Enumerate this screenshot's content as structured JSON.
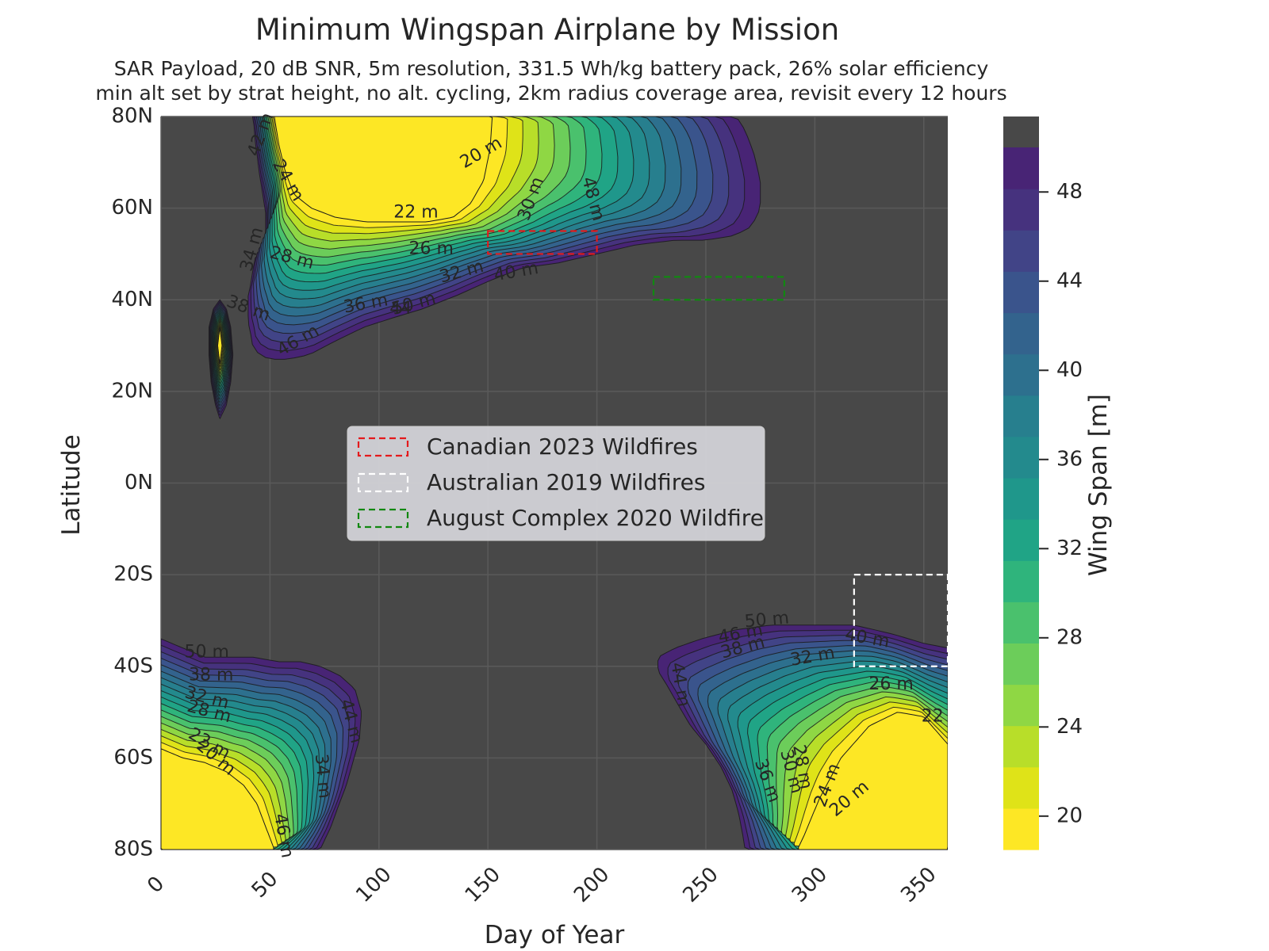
{
  "chart_data": {
    "type": "contour",
    "title": "Minimum Wingspan Airplane by Mission",
    "subtitle_lines": [
      "SAR Payload, 20 dB SNR, 5m resolution, 331.5 Wh/kg battery pack, 26% solar efficiency",
      "min alt set by strat height, no alt. cycling, 2km radius coverage area, revisit every 12 hours"
    ],
    "xlabel": "Day of Year",
    "ylabel": "Latitude",
    "xlim": [
      0,
      361
    ],
    "ylim": [
      -80,
      80
    ],
    "x_ticks": [
      0,
      50,
      100,
      150,
      200,
      250,
      300,
      350
    ],
    "x_tick_labels": [
      "0",
      "50",
      "100",
      "150",
      "200",
      "250",
      "300",
      "350"
    ],
    "y_ticks": [
      80,
      60,
      40,
      20,
      0,
      -20,
      -40,
      -60,
      -80
    ],
    "y_tick_labels": [
      "80N",
      "60N",
      "40N",
      "20N",
      "0N",
      "20S",
      "40S",
      "60S",
      "80S"
    ],
    "infeasible_color": "#484848",
    "colorbar": {
      "label": "Wing Span [m]",
      "min": 18.5,
      "max": 50,
      "ticks": [
        20,
        24,
        28,
        32,
        36,
        40,
        44,
        48
      ],
      "colors": [
        "#fde725",
        "#dfe318",
        "#b8de29",
        "#8fd744",
        "#6ccd5a",
        "#4ac16d",
        "#2fb47c",
        "#20a486",
        "#1f978b",
        "#238a8d",
        "#277f8e",
        "#2d708e",
        "#33638d",
        "#3a548c",
        "#414487",
        "#46327e",
        "#482475"
      ],
      "top_color": "#484848"
    },
    "contour_levels_m": [
      20,
      22,
      24,
      26,
      28,
      30,
      32,
      34,
      36,
      38,
      40,
      42,
      44,
      46,
      48,
      50
    ],
    "regions": [
      {
        "name": "north-feasible-region",
        "outline": [
          [
            42,
            80
          ],
          [
            43,
            77
          ],
          [
            43,
            75
          ],
          [
            44,
            72
          ],
          [
            45,
            68
          ],
          [
            46,
            65
          ],
          [
            47,
            62
          ],
          [
            48,
            59
          ],
          [
            48,
            56
          ],
          [
            48,
            53
          ],
          [
            47,
            51
          ],
          [
            45,
            50
          ],
          [
            43,
            49
          ],
          [
            42,
            46
          ],
          [
            41,
            43
          ],
          [
            40,
            41
          ],
          [
            40,
            39
          ],
          [
            40,
            37
          ],
          [
            40,
            35
          ],
          [
            41,
            33
          ],
          [
            42,
            30
          ],
          [
            45,
            28
          ],
          [
            50,
            27
          ],
          [
            58,
            27
          ],
          [
            68,
            28
          ],
          [
            80,
            31
          ],
          [
            93,
            34
          ],
          [
            106,
            36
          ],
          [
            120,
            38
          ],
          [
            136,
            41
          ],
          [
            150,
            44
          ],
          [
            166,
            47
          ],
          [
            182,
            48
          ],
          [
            200,
            50
          ],
          [
            218,
            52
          ],
          [
            236,
            53
          ],
          [
            250,
            53
          ],
          [
            263,
            54
          ],
          [
            271,
            56
          ],
          [
            275,
            60
          ],
          [
            275,
            66
          ],
          [
            272,
            72
          ],
          [
            268,
            77
          ],
          [
            264,
            80
          ]
        ],
        "core": [
          [
            52,
            80
          ],
          [
            54,
            74
          ],
          [
            57,
            68
          ],
          [
            61,
            63
          ],
          [
            69,
            60
          ],
          [
            80,
            58
          ],
          [
            94,
            57
          ],
          [
            108,
            57
          ],
          [
            122,
            57
          ],
          [
            134,
            58
          ],
          [
            142,
            61
          ],
          [
            148,
            66
          ],
          [
            151,
            73
          ],
          [
            152,
            80
          ]
        ],
        "label_points": [
          {
            "text": "20 m",
            "x": 147,
            "y": 72,
            "rotate": -30
          },
          {
            "text": "22 m",
            "x": 117,
            "y": 59,
            "rotate": 0
          },
          {
            "text": "24 m",
            "x": 58,
            "y": 66,
            "rotate": 60
          },
          {
            "text": "26 m",
            "x": 124,
            "y": 51,
            "rotate": 0
          },
          {
            "text": "28 m",
            "x": 60,
            "y": 49,
            "rotate": 15
          },
          {
            "text": "30 m",
            "x": 170,
            "y": 62,
            "rotate": -70
          },
          {
            "text": "32 m",
            "x": 138,
            "y": 46,
            "rotate": -15
          },
          {
            "text": "34 m",
            "x": 42,
            "y": 51,
            "rotate": -75
          },
          {
            "text": "36 m",
            "x": 94,
            "y": 39,
            "rotate": -10
          },
          {
            "text": "38 m",
            "x": 40,
            "y": 38,
            "rotate": 20
          },
          {
            "text": "40 m",
            "x": 163,
            "y": 46,
            "rotate": -10
          },
          {
            "text": "44",
            "x": 110,
            "y": 38,
            "rotate": 0
          },
          {
            "text": "50 m",
            "x": 116,
            "y": 39,
            "rotate": -15
          },
          {
            "text": "46 m",
            "x": 63,
            "y": 31,
            "rotate": -30
          },
          {
            "text": "48 m",
            "x": 198,
            "y": 62,
            "rotate": 75
          },
          {
            "text": "42 m",
            "x": 46,
            "y": 76,
            "rotate": -70
          }
        ]
      },
      {
        "name": "small-island-region",
        "outline": [
          [
            27,
            40
          ],
          [
            30,
            38
          ],
          [
            32,
            34
          ],
          [
            33,
            28
          ],
          [
            32,
            22
          ],
          [
            30,
            17
          ],
          [
            27,
            14
          ],
          [
            25,
            17
          ],
          [
            23,
            22
          ],
          [
            22,
            28
          ],
          [
            22,
            34
          ],
          [
            24,
            38
          ]
        ],
        "core": [
          [
            27,
            34
          ],
          [
            28,
            30
          ],
          [
            27,
            26
          ],
          [
            26,
            30
          ]
        ],
        "label_points": []
      },
      {
        "name": "southwest-feasible-region",
        "outline": [
          [
            0,
            -34
          ],
          [
            10,
            -36
          ],
          [
            20,
            -38
          ],
          [
            30,
            -38
          ],
          [
            42,
            -38
          ],
          [
            54,
            -39
          ],
          [
            64,
            -39
          ],
          [
            73,
            -40
          ],
          [
            82,
            -42
          ],
          [
            89,
            -45
          ],
          [
            92,
            -50
          ],
          [
            91,
            -56
          ],
          [
            88,
            -61
          ],
          [
            85,
            -66
          ],
          [
            81,
            -71
          ],
          [
            78,
            -75
          ],
          [
            75,
            -78
          ],
          [
            73,
            -80
          ],
          [
            0,
            -80
          ]
        ],
        "core": [
          [
            0,
            -58
          ],
          [
            10,
            -60
          ],
          [
            20,
            -61
          ],
          [
            30,
            -63
          ],
          [
            38,
            -66
          ],
          [
            44,
            -70
          ],
          [
            48,
            -75
          ],
          [
            52,
            -80
          ],
          [
            0,
            -80
          ]
        ],
        "label_points": [
          {
            "text": "50 m",
            "x": 21,
            "y": -37,
            "rotate": 0
          },
          {
            "text": "38 m",
            "x": 23,
            "y": -42,
            "rotate": 0
          },
          {
            "text": "32 m",
            "x": 21,
            "y": -47,
            "rotate": 15
          },
          {
            "text": "28 m",
            "x": 22,
            "y": -50,
            "rotate": 15
          },
          {
            "text": "22 m",
            "x": 22,
            "y": -57,
            "rotate": 30
          },
          {
            "text": "20 m",
            "x": 25,
            "y": -60,
            "rotate": 40
          },
          {
            "text": "44 m",
            "x": 87,
            "y": -52,
            "rotate": 75
          },
          {
            "text": "34 m",
            "x": 74,
            "y": -64,
            "rotate": 85
          },
          {
            "text": "46 m",
            "x": 56,
            "y": -77,
            "rotate": 80
          }
        ]
      },
      {
        "name": "southeast-feasible-region",
        "outline": [
          [
            361,
            -36
          ],
          [
            350,
            -35
          ],
          [
            336,
            -33
          ],
          [
            318,
            -31
          ],
          [
            298,
            -31
          ],
          [
            280,
            -31
          ],
          [
            264,
            -32
          ],
          [
            248,
            -34
          ],
          [
            236,
            -36
          ],
          [
            228,
            -38
          ],
          [
            228,
            -41
          ],
          [
            232,
            -44
          ],
          [
            238,
            -49
          ],
          [
            243,
            -53
          ],
          [
            250,
            -57
          ],
          [
            257,
            -62
          ],
          [
            262,
            -67
          ],
          [
            265,
            -72
          ],
          [
            267,
            -77
          ],
          [
            268,
            -80
          ],
          [
            361,
            -80
          ]
        ],
        "core": [
          [
            361,
            -57
          ],
          [
            350,
            -51
          ],
          [
            338,
            -50
          ],
          [
            325,
            -53
          ],
          [
            312,
            -60
          ],
          [
            302,
            -69
          ],
          [
            295,
            -77
          ],
          [
            292,
            -80
          ],
          [
            361,
            -80
          ]
        ],
        "label_points": [
          {
            "text": "50 m",
            "x": 278,
            "y": -30,
            "rotate": -5
          },
          {
            "text": "46 m",
            "x": 266,
            "y": -33,
            "rotate": -10
          },
          {
            "text": "38 m",
            "x": 267,
            "y": -36,
            "rotate": -15
          },
          {
            "text": "40 m",
            "x": 324,
            "y": -34,
            "rotate": 10
          },
          {
            "text": "32 m",
            "x": 299,
            "y": -38,
            "rotate": -10
          },
          {
            "text": "26 m",
            "x": 335,
            "y": -44,
            "rotate": 0
          },
          {
            "text": "22",
            "x": 354,
            "y": -51,
            "rotate": 0
          },
          {
            "text": "44 m",
            "x": 238,
            "y": -44,
            "rotate": 80
          },
          {
            "text": "36 m",
            "x": 278,
            "y": -65,
            "rotate": 70
          },
          {
            "text": "30 m",
            "x": 289,
            "y": -63,
            "rotate": 75
          },
          {
            "text": "28 m",
            "x": 294,
            "y": -62,
            "rotate": 80
          },
          {
            "text": "24 m",
            "x": 306,
            "y": -66,
            "rotate": -70
          },
          {
            "text": "20 m",
            "x": 316,
            "y": -69,
            "rotate": -40
          }
        ]
      }
    ],
    "boxes": [
      {
        "name": "Canadian 2023 Wildfires",
        "color": "#e41a1c",
        "x0": 150,
        "x1": 200,
        "y0": 50,
        "y1": 55
      },
      {
        "name": "Australian 2019 Wildfires",
        "color": "#ffffff",
        "x0": 318,
        "x1": 361,
        "y0": -40,
        "y1": -20
      },
      {
        "name": "August Complex 2020 Wildfire",
        "color": "#118811",
        "x0": 226,
        "x1": 286,
        "y0": 40,
        "y1": 45
      }
    ],
    "legend": {
      "placement": "center",
      "entries": [
        "Canadian 2023 Wildfires",
        "Australian 2019 Wildfires",
        "August Complex 2020 Wildfire"
      ]
    }
  }
}
